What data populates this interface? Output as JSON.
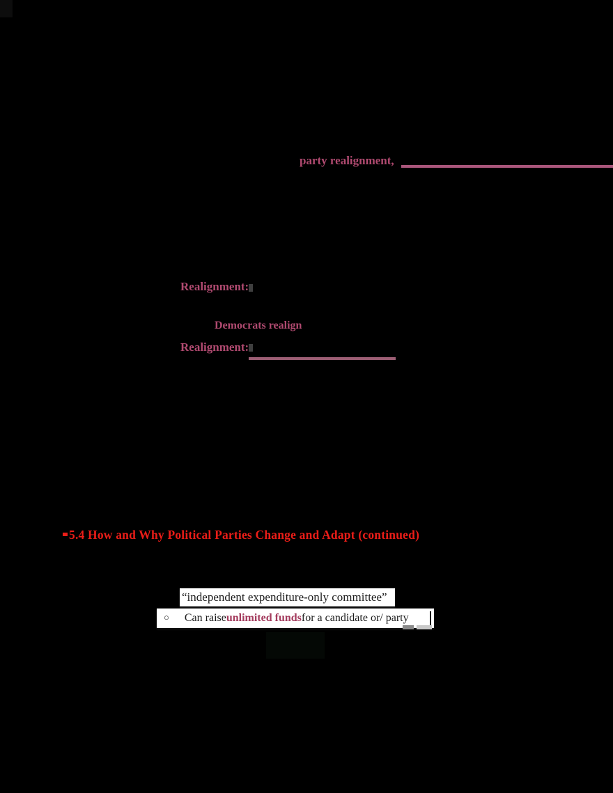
{
  "highlights": {
    "party_realignment": "party realignment,",
    "realignment_1": "Realignment:",
    "democrats_realign": "Democrats realign",
    "realignment_2": "Realignment:",
    "section_header": "5.4 How and Why Political Parties Change and Adapt (continued)"
  },
  "callouts": {
    "quote_text": "“independent expenditure-only committee”",
    "bullet_glyph": "○",
    "bullet_prefix": "Can raise ",
    "bullet_emphasis": "unlimited funds",
    "bullet_suffix": " for a candidate or/ party"
  },
  "colors": {
    "background": "#000000",
    "pink_highlight": "#b04a70",
    "underline_rule_1": "#aa567b",
    "underline_rule_2": "#9c5e74",
    "section_header_red": "#ea1d18",
    "emphasis_maroon": "#a43c5e",
    "callout_background": "#ffffff",
    "callout_text": "#1c1c1c"
  }
}
